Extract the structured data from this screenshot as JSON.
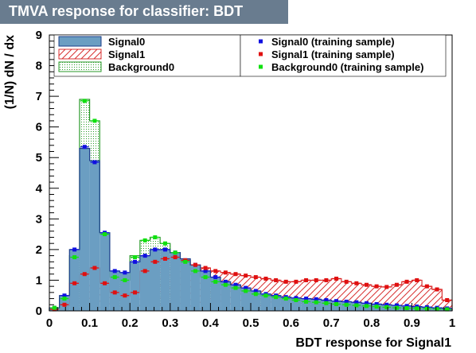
{
  "chart_data": {
    "type": "histogram",
    "title": "TMVA response for classifier: BDT",
    "xlabel": "BDT response for Signal1",
    "ylabel": "(1/N) dN / dx",
    "xlim": [
      0,
      1
    ],
    "ylim": [
      0,
      9
    ],
    "x_ticks": [
      "0",
      "0.1",
      "0.2",
      "0.3",
      "0.4",
      "0.5",
      "0.6",
      "0.7",
      "0.8",
      "0.9",
      "1"
    ],
    "y_ticks": [
      "0",
      "1",
      "2",
      "3",
      "4",
      "5",
      "6",
      "7",
      "8",
      "9"
    ],
    "bin_width": 0.025,
    "bin_edges_start": 0.0,
    "grid": false,
    "legend_left": [
      "Signal0",
      "Signal1",
      "Background0"
    ],
    "legend_right": [
      "Signal0 (training sample)",
      "Signal1 (training sample)",
      "Background0 (training sample)"
    ],
    "colors": {
      "signal0_fill": "#6b9ec2",
      "signal0_line": "#1b3e8a",
      "signal1_hatch": "#d83030",
      "background0_fill": "#7fdc7f",
      "background0_line": "#2a9a2a",
      "train_signal0": "#1010e0",
      "train_signal1": "#e01010",
      "train_background0": "#10e010",
      "title_bg": "#697c8f"
    },
    "series": [
      {
        "name": "Signal0",
        "style": "filled",
        "values": [
          0.1,
          0.5,
          2.0,
          5.3,
          4.9,
          2.55,
          1.3,
          1.25,
          1.6,
          1.8,
          2.0,
          2.0,
          1.9,
          1.7,
          1.5,
          1.3,
          1.1,
          0.95,
          0.85,
          0.75,
          0.65,
          0.55,
          0.5,
          0.45,
          0.42,
          0.4,
          0.38,
          0.35,
          0.32,
          0.3,
          0.28,
          0.25,
          0.22,
          0.2,
          0.18,
          0.16,
          0.14,
          0.12,
          0.1,
          0.08
        ]
      },
      {
        "name": "Signal1",
        "style": "hatched",
        "values": [
          0.05,
          0.2,
          0.9,
          1.2,
          1.4,
          0.9,
          0.6,
          0.5,
          0.6,
          1.3,
          1.6,
          1.7,
          1.75,
          1.65,
          1.5,
          1.4,
          1.3,
          1.25,
          1.2,
          1.15,
          1.1,
          1.05,
          1.0,
          0.95,
          0.95,
          1.0,
          1.0,
          1.0,
          1.05,
          0.95,
          0.9,
          0.85,
          0.8,
          0.78,
          0.85,
          0.95,
          1.0,
          0.8,
          0.7,
          0.35
        ]
      },
      {
        "name": "Background0",
        "style": "dotted",
        "values": [
          0.1,
          0.4,
          1.8,
          6.9,
          6.2,
          2.5,
          1.1,
          1.0,
          1.8,
          2.3,
          2.4,
          2.2,
          1.9,
          1.6,
          1.3,
          1.1,
          0.95,
          0.85,
          0.75,
          0.65,
          0.55,
          0.5,
          0.45,
          0.4,
          0.35,
          0.3,
          0.28,
          0.25,
          0.22,
          0.2,
          0.18,
          0.16,
          0.14,
          0.12,
          0.1,
          0.09,
          0.08,
          0.07,
          0.06,
          0.05
        ]
      },
      {
        "name": "Signal0 (training sample)",
        "style": "markers",
        "values": [
          0.1,
          0.5,
          2.0,
          5.35,
          4.85,
          2.55,
          1.3,
          1.25,
          1.6,
          1.8,
          2.0,
          2.0,
          1.9,
          1.65,
          1.5,
          1.3,
          1.1,
          0.95,
          0.85,
          0.75,
          0.65,
          0.55,
          0.5,
          0.45,
          0.42,
          0.4,
          0.38,
          0.35,
          0.32,
          0.3,
          0.28,
          0.25,
          0.22,
          0.2,
          0.18,
          0.16,
          0.14,
          0.12,
          0.1,
          0.08
        ]
      },
      {
        "name": "Signal1 (training sample)",
        "style": "markers",
        "values": [
          0.05,
          0.2,
          0.9,
          1.2,
          1.4,
          0.9,
          0.6,
          0.5,
          0.6,
          1.3,
          1.6,
          1.7,
          1.75,
          1.65,
          1.5,
          1.4,
          1.3,
          1.25,
          1.2,
          1.15,
          1.1,
          1.05,
          1.0,
          0.95,
          0.95,
          1.0,
          1.0,
          1.0,
          1.05,
          0.95,
          0.9,
          0.85,
          0.8,
          0.78,
          0.85,
          0.95,
          1.0,
          0.8,
          0.7,
          0.35
        ]
      },
      {
        "name": "Background0 (training sample)",
        "style": "markers",
        "values": [
          0.1,
          0.4,
          1.75,
          6.85,
          6.2,
          2.5,
          1.1,
          1.0,
          1.75,
          2.3,
          2.4,
          2.2,
          1.9,
          1.6,
          1.3,
          1.1,
          0.95,
          0.85,
          0.75,
          0.65,
          0.55,
          0.5,
          0.45,
          0.4,
          0.35,
          0.3,
          0.28,
          0.25,
          0.22,
          0.2,
          0.18,
          0.16,
          0.14,
          0.12,
          0.1,
          0.09,
          0.08,
          0.07,
          0.06,
          0.05
        ]
      }
    ]
  }
}
